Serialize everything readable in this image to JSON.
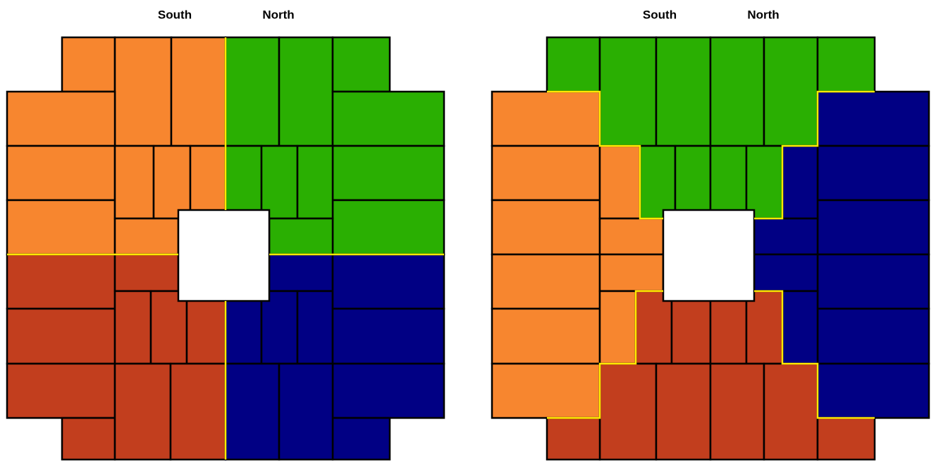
{
  "panels": [
    {
      "labels": [
        "South",
        "North"
      ]
    },
    {
      "labels": [
        "South",
        "North"
      ]
    }
  ]
}
